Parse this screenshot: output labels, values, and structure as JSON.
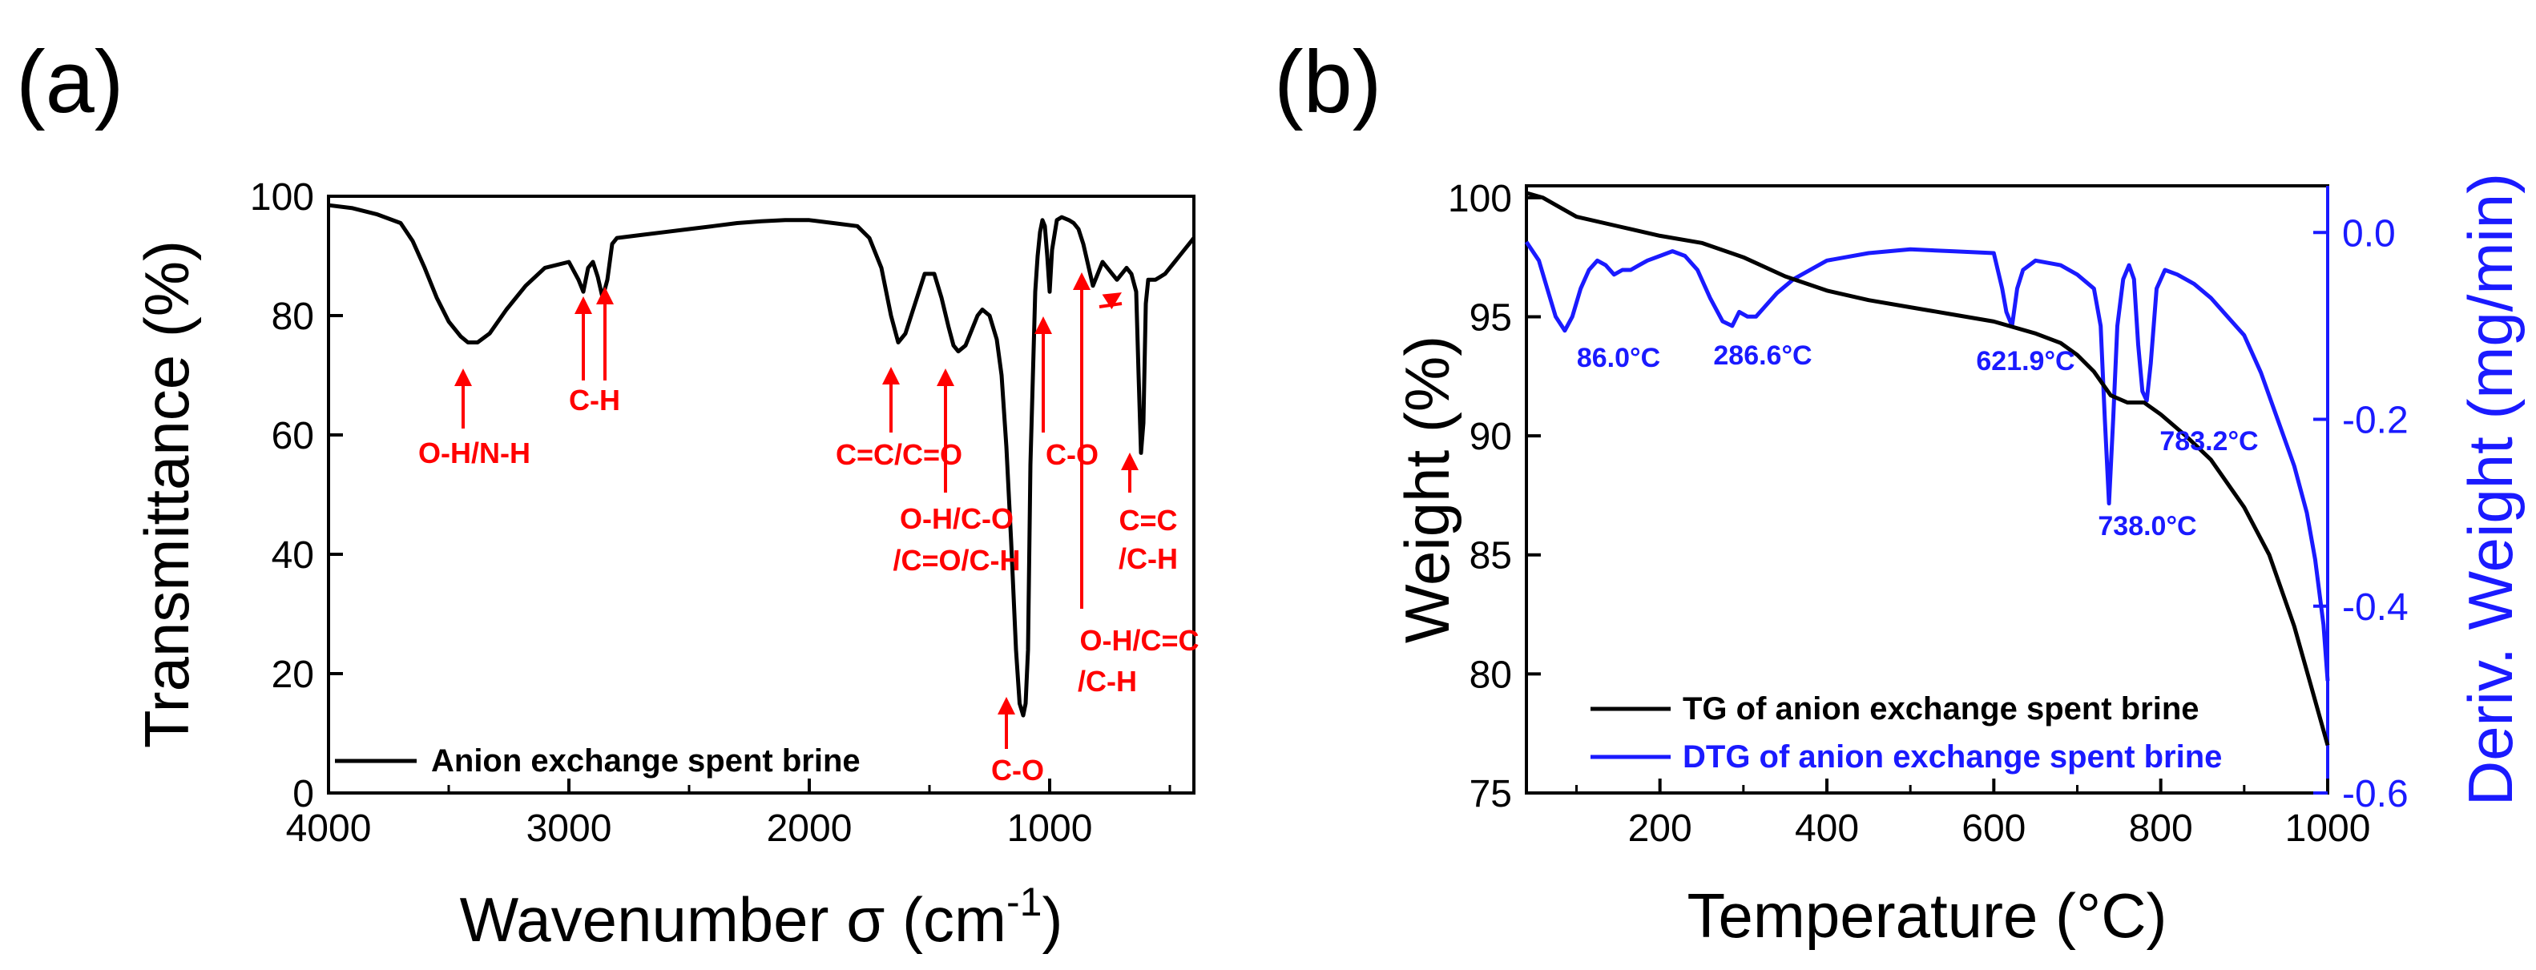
{
  "chart_data": [
    {
      "panel": "(a)",
      "type": "line",
      "xlabel": "Wavenumber σ (cm",
      "xlabel_sup": "-1",
      "xlabel_close": ")",
      "ylabel": "Transmittance (%)",
      "xlim": [
        4000,
        400
      ],
      "ylim": [
        0,
        100
      ],
      "xticks": [
        4000,
        3000,
        2000,
        1000
      ],
      "yticks": [
        0,
        20,
        40,
        60,
        80,
        100
      ],
      "legend": [
        "Anion exchange spent brine"
      ],
      "legend_position": "bottom-left",
      "line_color": "#000000",
      "series": [
        {
          "name": "Anion exchange spent brine",
          "x": [
            4000,
            3900,
            3800,
            3700,
            3650,
            3600,
            3550,
            3500,
            3450,
            3420,
            3380,
            3330,
            3260,
            3180,
            3100,
            3000,
            2960,
            2940,
            2920,
            2900,
            2880,
            2860,
            2840,
            2820,
            2800,
            2700,
            2600,
            2500,
            2400,
            2300,
            2200,
            2100,
            2000,
            1900,
            1800,
            1750,
            1700,
            1660,
            1630,
            1600,
            1560,
            1520,
            1480,
            1450,
            1420,
            1400,
            1380,
            1350,
            1320,
            1300,
            1280,
            1250,
            1220,
            1200,
            1180,
            1160,
            1140,
            1125,
            1110,
            1100,
            1090,
            1080,
            1060,
            1050,
            1040,
            1030,
            1020,
            1010,
            1000,
            990,
            970,
            950,
            920,
            900,
            880,
            860,
            840,
            820,
            800,
            780,
            760,
            740,
            720,
            700,
            680,
            660,
            640,
            630,
            620,
            610,
            600,
            590,
            580,
            560,
            540,
            520,
            500,
            480,
            460,
            440,
            420,
            400
          ],
          "y": [
            98.5,
            98,
            97,
            95.5,
            92.5,
            88,
            83,
            79,
            76.5,
            75.5,
            75.5,
            77,
            81,
            85,
            88,
            89,
            86,
            84,
            88,
            89,
            86.5,
            83,
            86,
            92,
            93,
            93.5,
            94,
            94.5,
            95,
            95.5,
            95.8,
            96,
            96,
            95.5,
            95,
            93,
            88,
            80,
            75.5,
            77,
            82,
            87,
            87,
            83,
            78,
            75,
            74,
            75,
            78,
            80,
            81,
            80,
            76,
            70,
            58,
            42,
            24,
            15,
            13,
            15,
            24,
            55,
            84,
            90,
            94,
            96,
            95,
            90,
            84,
            91,
            96,
            96.5,
            96,
            95.5,
            94.5,
            92,
            88.5,
            85,
            87,
            89,
            88,
            87,
            86,
            87,
            88,
            87,
            84,
            70,
            57,
            62,
            82,
            86,
            86,
            86,
            86.5,
            87,
            88,
            89,
            90,
            91,
            92,
            93
          ]
        }
      ],
      "annotations": [
        {
          "text": "O-H/N-H",
          "x": 3420
        },
        {
          "text": "C-H",
          "x": 2880
        },
        {
          "text": "C=C/C=O",
          "x": 1630
        },
        {
          "text": "O-H/C-O",
          "x": 1400
        },
        {
          "text": "/C=O/C-H",
          "x": 1400
        },
        {
          "text": "C-O",
          "x": 1110
        },
        {
          "text": "C-O",
          "x": 1000
        },
        {
          "text": "O-H/C=C",
          "x": 800
        },
        {
          "text": "/C-H",
          "x": 800
        },
        {
          "text": "C=C",
          "x": 620
        },
        {
          "text": "/C-H",
          "x": 620
        }
      ]
    },
    {
      "panel": "(b)",
      "type": "line",
      "xlabel": "Temperature (°C)",
      "ylabel": "Weight (%)",
      "y2label": "Deriv. Weight (mg/min)",
      "xlim": [
        40,
        1000
      ],
      "ylim": [
        75,
        100.5
      ],
      "y2lim": [
        -0.6,
        0.05
      ],
      "xticks": [
        200,
        400,
        600,
        800,
        1000
      ],
      "yticks": [
        75,
        80,
        85,
        90,
        95,
        100
      ],
      "y2ticks": [
        "-0.6",
        "-0.4",
        "-0.2",
        "0.0"
      ],
      "y2tick_values": [
        -0.6,
        -0.4,
        -0.2,
        0.0
      ],
      "legend": [
        "TG of anion exchange spent brine",
        "DTG of anion exchange spent brine"
      ],
      "legend_position": "bottom-left",
      "colors": {
        "tg": "#000000",
        "dtg": "#1a1aff"
      },
      "series": [
        {
          "name": "TG of anion exchange spent brine",
          "axis": "left",
          "x": [
            40,
            60,
            80,
            100,
            150,
            200,
            250,
            300,
            350,
            400,
            450,
            500,
            550,
            600,
            620,
            650,
            680,
            700,
            720,
            740,
            760,
            780,
            800,
            830,
            860,
            900,
            930,
            960,
            980,
            1000
          ],
          "y": [
            100.2,
            100,
            99.6,
            99.2,
            98.8,
            98.4,
            98.1,
            97.5,
            96.7,
            96.1,
            95.7,
            95.4,
            95.1,
            94.8,
            94.6,
            94.3,
            93.9,
            93.4,
            92.7,
            91.7,
            91.4,
            91.4,
            90.9,
            90,
            89,
            87,
            85,
            82,
            79.5,
            77
          ]
        },
        {
          "name": "DTG of anion exchange spent brine",
          "axis": "right",
          "x": [
            40,
            55,
            65,
            75,
            86,
            95,
            105,
            115,
            125,
            135,
            145,
            155,
            165,
            175,
            185,
            200,
            215,
            230,
            245,
            260,
            275,
            286.6,
            295,
            305,
            315,
            325,
            340,
            360,
            400,
            450,
            500,
            550,
            600,
            610,
            615,
            621.9,
            628,
            635,
            650,
            680,
            700,
            720,
            728,
            733,
            738,
            743,
            748,
            755,
            762,
            768,
            773,
            778,
            783.2,
            788,
            795,
            805,
            820,
            840,
            860,
            880,
            900,
            920,
            940,
            960,
            975,
            985,
            995,
            1000
          ],
          "y": [
            -0.01,
            -0.03,
            -0.06,
            -0.09,
            -0.105,
            -0.09,
            -0.06,
            -0.04,
            -0.03,
            -0.035,
            -0.045,
            -0.04,
            -0.04,
            -0.035,
            -0.03,
            -0.025,
            -0.02,
            -0.025,
            -0.04,
            -0.07,
            -0.095,
            -0.1,
            -0.085,
            -0.09,
            -0.09,
            -0.08,
            -0.065,
            -0.05,
            -0.03,
            -0.022,
            -0.018,
            -0.02,
            -0.022,
            -0.06,
            -0.085,
            -0.1,
            -0.06,
            -0.04,
            -0.03,
            -0.035,
            -0.045,
            -0.06,
            -0.1,
            -0.2,
            -0.29,
            -0.2,
            -0.1,
            -0.05,
            -0.035,
            -0.05,
            -0.12,
            -0.17,
            -0.18,
            -0.14,
            -0.06,
            -0.04,
            -0.045,
            -0.055,
            -0.07,
            -0.09,
            -0.11,
            -0.15,
            -0.2,
            -0.25,
            -0.3,
            -0.35,
            -0.42,
            -0.48
          ]
        }
      ],
      "annotations": [
        {
          "text": "86.0°C",
          "x": 86.0
        },
        {
          "text": "286.6°C",
          "x": 286.6
        },
        {
          "text": "621.9°C",
          "x": 621.9
        },
        {
          "text": "738.0°C",
          "x": 738.0
        },
        {
          "text": "783.2°C",
          "x": 783.2
        }
      ]
    }
  ]
}
